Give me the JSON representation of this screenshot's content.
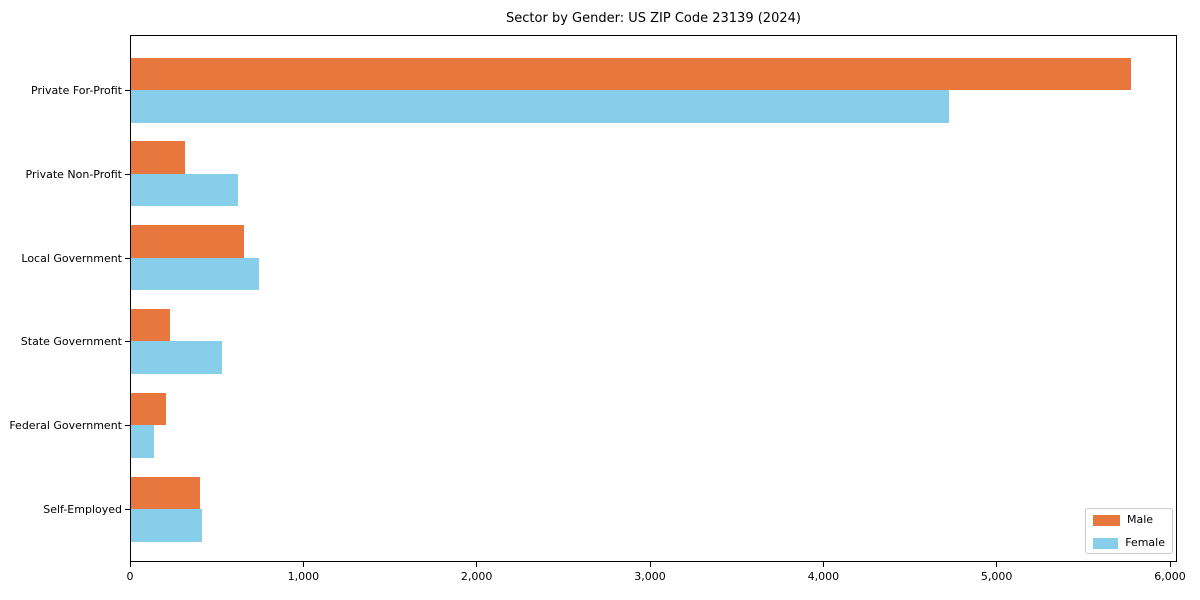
{
  "chart_data": {
    "type": "bar",
    "orientation": "horizontal",
    "title": "Sector by Gender: US ZIP Code 23139 (2024)",
    "xlabel": "",
    "ylabel": "",
    "categories": [
      "Private For-Profit",
      "Private Non-Profit",
      "Local Government",
      "State Government",
      "Federal Government",
      "Self-Employed"
    ],
    "series": [
      {
        "name": "Male",
        "color": "#e8773d",
        "values": [
          5770,
          310,
          650,
          225,
          200,
          400
        ]
      },
      {
        "name": "Female",
        "color": "#87ceeb",
        "values": [
          4720,
          620,
          740,
          525,
          130,
          410
        ]
      }
    ],
    "xlim": [
      0,
      6000
    ],
    "x_ticks": [
      "0",
      "1,000",
      "2,000",
      "3,000",
      "4,000",
      "5,000",
      "6,000"
    ],
    "x_tick_values": [
      0,
      1000,
      2000,
      3000,
      4000,
      5000,
      6000
    ],
    "grid": false,
    "legend_position": "lower right"
  }
}
